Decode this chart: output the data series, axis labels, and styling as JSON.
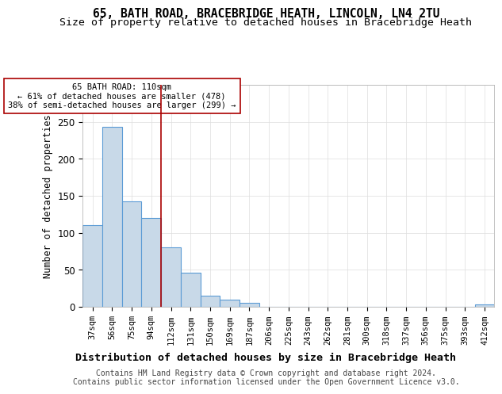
{
  "title1": "65, BATH ROAD, BRACEBRIDGE HEATH, LINCOLN, LN4 2TU",
  "title2": "Size of property relative to detached houses in Bracebridge Heath",
  "xlabel": "Distribution of detached houses by size in Bracebridge Heath",
  "ylabel": "Number of detached properties",
  "categories": [
    "37sqm",
    "56sqm",
    "75sqm",
    "94sqm",
    "112sqm",
    "131sqm",
    "150sqm",
    "169sqm",
    "187sqm",
    "206sqm",
    "225sqm",
    "243sqm",
    "262sqm",
    "281sqm",
    "300sqm",
    "318sqm",
    "337sqm",
    "356sqm",
    "375sqm",
    "393sqm",
    "412sqm"
  ],
  "values": [
    110,
    243,
    143,
    120,
    80,
    46,
    15,
    10,
    5,
    0,
    0,
    0,
    0,
    0,
    0,
    0,
    0,
    0,
    0,
    0,
    3
  ],
  "bar_color": "#c8d9e8",
  "bar_edge_color": "#5b9bd5",
  "annotation_line1": "65 BATH ROAD: 110sqm",
  "annotation_line2": "← 61% of detached houses are smaller (478)",
  "annotation_line3": "38% of semi-detached houses are larger (299) →",
  "vline_x": 3.5,
  "vline_color": "#aa0000",
  "annotation_box_color": "#ffffff",
  "annotation_box_edge": "#aa0000",
  "footer": "Contains HM Land Registry data © Crown copyright and database right 2024.\nContains public sector information licensed under the Open Government Licence v3.0.",
  "bg_color": "#ffffff",
  "ylim": [
    0,
    300
  ],
  "title1_fontsize": 10.5,
  "title2_fontsize": 9.5,
  "xlabel_fontsize": 9.5,
  "ylabel_fontsize": 8.5,
  "footer_fontsize": 7.0,
  "tick_fontsize": 7.5,
  "ytick_fontsize": 8.5
}
